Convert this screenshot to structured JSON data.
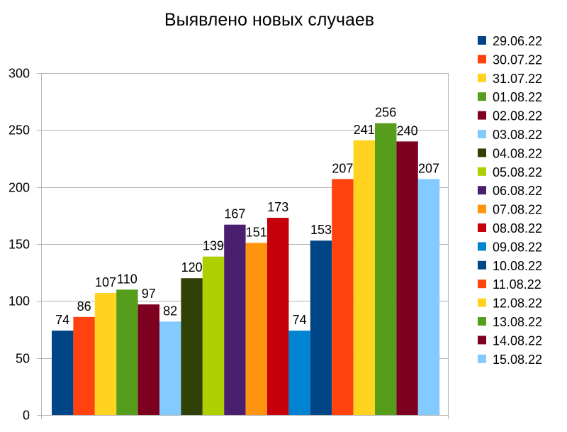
{
  "chart_data": {
    "type": "bar",
    "title": "Выявлено новых случаев",
    "ylim": [
      0,
      300
    ],
    "y_ticks": [
      "0",
      "50",
      "100",
      "150",
      "200",
      "250",
      "300"
    ],
    "grid": true,
    "legend_position": "right",
    "series": [
      {
        "name": "29.06.22",
        "color": "#004586",
        "value": 74
      },
      {
        "name": "30.07.22",
        "color": "#ff420e",
        "value": 86
      },
      {
        "name": "31.07.22",
        "color": "#ffd320",
        "value": 107
      },
      {
        "name": "01.08.22",
        "color": "#579d1c",
        "value": 110
      },
      {
        "name": "02.08.22",
        "color": "#7e0021",
        "value": 97
      },
      {
        "name": "03.08.22",
        "color": "#83caff",
        "value": 82
      },
      {
        "name": "04.08.22",
        "color": "#314004",
        "value": 120
      },
      {
        "name": "05.08.22",
        "color": "#aecf00",
        "value": 139
      },
      {
        "name": "06.08.22",
        "color": "#4b1f6f",
        "value": 167
      },
      {
        "name": "07.08.22",
        "color": "#ff950e",
        "value": 151
      },
      {
        "name": "08.08.22",
        "color": "#c5000b",
        "value": 173
      },
      {
        "name": "09.08.22",
        "color": "#0084d1",
        "value": 74
      },
      {
        "name": "10.08.22",
        "color": "#004586",
        "value": 153
      },
      {
        "name": "11.08.22",
        "color": "#ff420e",
        "value": 207
      },
      {
        "name": "12.08.22",
        "color": "#ffd320",
        "value": 241
      },
      {
        "name": "13.08.22",
        "color": "#579d1c",
        "value": 256
      },
      {
        "name": "14.08.22",
        "color": "#7e0021",
        "value": 240
      },
      {
        "name": "15.08.22",
        "color": "#83caff",
        "value": 207
      }
    ]
  }
}
